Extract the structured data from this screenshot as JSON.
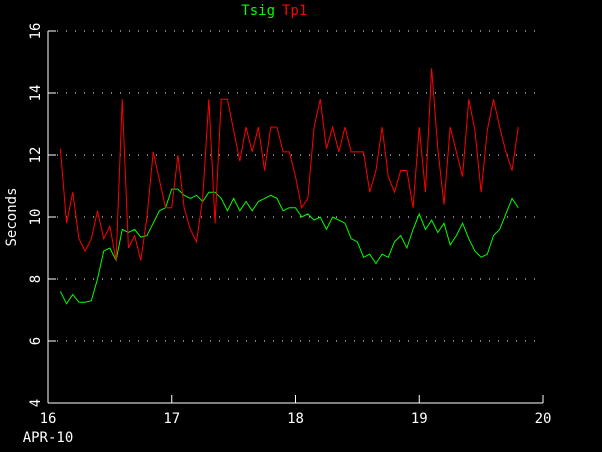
{
  "chart_data": {
    "type": "line",
    "x_label": "APR-10",
    "y_label": "Seconds",
    "x": [
      16.1,
      16.15,
      16.2,
      16.25,
      16.3,
      16.35,
      16.4,
      16.45,
      16.5,
      16.55,
      16.6,
      16.65,
      16.7,
      16.75,
      16.8,
      16.85,
      16.9,
      16.95,
      17,
      17.05,
      17.1,
      17.15,
      17.2,
      17.25,
      17.3,
      17.35,
      17.4,
      17.45,
      17.5,
      17.55,
      17.6,
      17.65,
      17.7,
      17.75,
      17.8,
      17.85,
      17.9,
      17.95,
      18,
      18.05,
      18.1,
      18.15,
      18.2,
      18.25,
      18.3,
      18.35,
      18.4,
      18.45,
      18.5,
      18.55,
      18.6,
      18.65,
      18.7,
      18.75,
      18.8,
      18.85,
      18.9,
      18.95,
      19,
      19.05,
      19.1,
      19.15,
      19.2,
      19.25,
      19.3,
      19.35,
      19.4,
      19.45,
      19.5,
      19.55,
      19.6,
      19.65,
      19.7,
      19.75,
      19.8
    ],
    "series": [
      {
        "name": "Tsig",
        "color": "#00ff00",
        "values": [
          7.6,
          7.2,
          7.5,
          7.25,
          7.25,
          7.3,
          8.0,
          8.9,
          9.0,
          8.6,
          9.6,
          9.5,
          9.6,
          9.35,
          9.4,
          9.8,
          10.2,
          10.3,
          10.9,
          10.9,
          10.7,
          10.6,
          10.7,
          10.5,
          10.8,
          10.8,
          10.6,
          10.2,
          10.6,
          10.2,
          10.5,
          10.2,
          10.5,
          10.6,
          10.7,
          10.6,
          10.2,
          10.3,
          10.3,
          10.0,
          10.1,
          9.9,
          10.0,
          9.6,
          10.0,
          9.9,
          9.8,
          9.3,
          9.2,
          8.7,
          8.8,
          8.5,
          8.8,
          8.7,
          9.2,
          9.4,
          9.0,
          9.6,
          10.1,
          9.6,
          9.9,
          9.5,
          9.8,
          9.1,
          9.4,
          9.8,
          9.3,
          8.9,
          8.7,
          8.8,
          9.4,
          9.6,
          10.1,
          10.6,
          10.3
        ]
      },
      {
        "name": "Tp1",
        "color": "#ff0000",
        "values": [
          12.2,
          9.8,
          10.8,
          9.3,
          8.9,
          9.3,
          10.2,
          9.3,
          9.7,
          8.6,
          13.8,
          9.0,
          9.4,
          8.6,
          10.0,
          12.1,
          11.2,
          10.3,
          10.3,
          12.0,
          10.3,
          9.6,
          9.2,
          10.6,
          13.8,
          9.8,
          13.8,
          13.8,
          12.8,
          11.8,
          12.9,
          12.1,
          12.9,
          11.5,
          12.9,
          12.9,
          12.1,
          12.1,
          11.3,
          10.3,
          10.6,
          12.9,
          13.8,
          12.2,
          12.9,
          12.1,
          12.9,
          12.1,
          12.1,
          12.1,
          10.8,
          11.5,
          12.9,
          11.3,
          10.8,
          11.5,
          11.5,
          10.3,
          12.9,
          10.8,
          14.8,
          12.2,
          10.4,
          12.9,
          12.1,
          11.3,
          13.8,
          12.8,
          10.8,
          12.8,
          13.8,
          12.9,
          12.1,
          11.5,
          12.9
        ]
      }
    ],
    "xlim": [
      16,
      20
    ],
    "xticks": [
      16,
      17,
      18,
      19,
      20
    ],
    "ylim": [
      4,
      16
    ],
    "yticks": [
      4,
      6,
      8,
      10,
      12,
      14,
      16
    ],
    "grid": true
  }
}
